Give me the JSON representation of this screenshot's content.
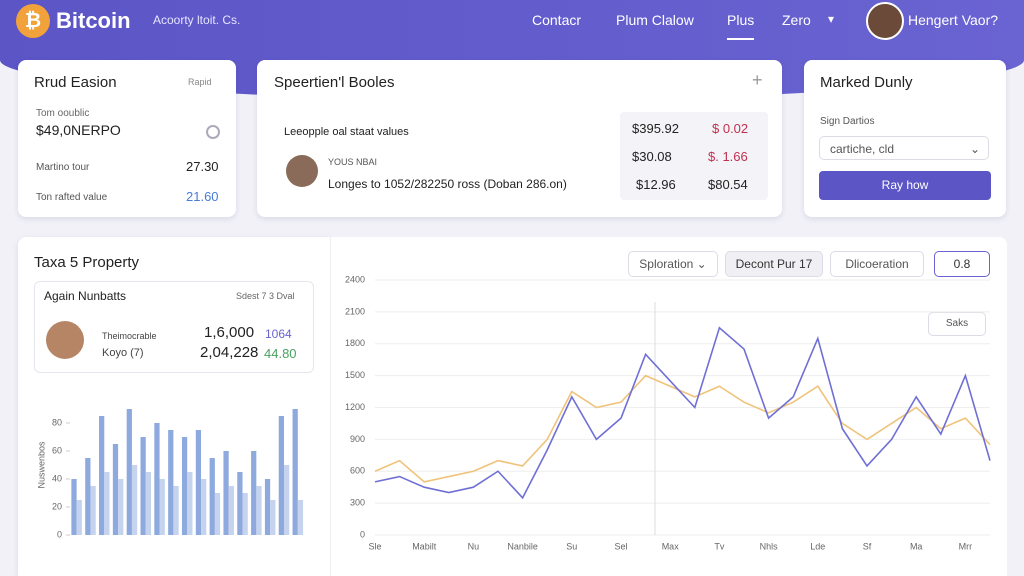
{
  "header": {
    "brand": "Bitcoin",
    "subtitle": "Acoorty ltoit. Cs.",
    "nav": [
      "Contacr",
      "Plum Clalow",
      "Plus",
      "Zero"
    ],
    "user": "Hengert Vaor?"
  },
  "card_1": {
    "title": "Rrud Easion",
    "action": "Rapid",
    "label": "Tom ooublic",
    "amount": "$49,0NERPO",
    "rows": [
      [
        "Martino tour",
        "27.30"
      ],
      [
        "Ton rafted value",
        "21.60"
      ]
    ]
  },
  "card_2": {
    "title": "Speertien'l Booles",
    "rows": [
      [
        "Leeopple oal staat values",
        "$395.92",
        "$ 0.02"
      ],
      [
        "YOUS NBAI",
        "$30.08",
        "$. 1.66"
      ],
      [
        "Longes to 1052/282250 ross (Doban 286.on)",
        "$12.96",
        "$80.54"
      ]
    ]
  },
  "card_3": {
    "title": "Marked Dunly",
    "label": "Sign Dartios",
    "select": "cartiche, cld",
    "button": "Ray how"
  },
  "property": {
    "title": "Taxa 5 Property",
    "box_title": "Again Nunbatts",
    "box_action": "Sdest 7 3 Dval",
    "rows": [
      [
        "Theimocrable",
        "1,6,000",
        "1064"
      ],
      [
        "Koyo (7)",
        "2,04,228",
        "44.80"
      ]
    ]
  },
  "toolbar": {
    "dropdown": "Sploration",
    "tab": "Decont Pur 17",
    "filter": "Dlicoeration",
    "value": "0.8",
    "legend_button": "Saks"
  },
  "bar_chart": {
    "type": "bar",
    "y_label": "Nuswenbos",
    "ylim": [
      0,
      100
    ],
    "yticks": [
      0,
      20,
      40,
      60,
      80
    ],
    "grid": false,
    "series": [
      {
        "color": "#8ea9dd",
        "values": [
          40,
          55,
          85,
          65,
          90,
          70,
          80,
          75,
          70,
          75,
          55,
          60,
          45,
          60,
          40,
          85,
          90
        ]
      },
      {
        "color": "#c5d3ef",
        "values": [
          25,
          35,
          45,
          40,
          50,
          45,
          40,
          35,
          45,
          40,
          30,
          35,
          30,
          35,
          25,
          50,
          25
        ]
      }
    ]
  },
  "line_chart": {
    "type": "line",
    "ylim": [
      0,
      2400
    ],
    "yticks": [
      0,
      300,
      600,
      900,
      1200,
      1500,
      1800,
      2100,
      2400
    ],
    "grid": true,
    "categories": [
      "Sle",
      null,
      "Mabilt",
      null,
      "Nu",
      null,
      "Nanbile",
      null,
      "Su",
      null,
      "Sel",
      null,
      "Max",
      null,
      "Tv",
      null,
      "Nhls",
      null,
      "Lde",
      null,
      "Sf",
      null,
      "Ma",
      null,
      "Mrr",
      null
    ],
    "series": [
      {
        "color": "#6f6fd6",
        "values": [
          500,
          550,
          450,
          400,
          450,
          600,
          350,
          800,
          1300,
          900,
          1100,
          1700,
          1450,
          1200,
          1950,
          1750,
          1100,
          1300,
          1850,
          1000,
          650,
          900,
          1300,
          950,
          1500,
          700
        ]
      },
      {
        "color": "#f0c37a",
        "values": [
          600,
          700,
          500,
          550,
          600,
          700,
          650,
          900,
          1350,
          1200,
          1250,
          1500,
          1400,
          1300,
          1400,
          1250,
          1150,
          1250,
          1400,
          1050,
          900,
          1050,
          1200,
          1000,
          1100,
          850
        ]
      }
    ]
  }
}
